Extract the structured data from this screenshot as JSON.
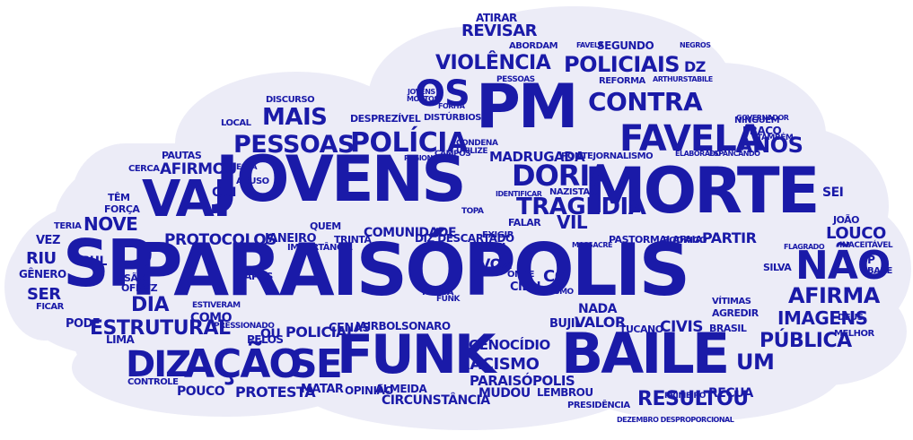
{
  "colors": {
    "background": "#ffffff",
    "cloud": "#ececf7",
    "text": "#1a1aa8",
    "text_dark": "#0d0d73",
    "text_light": "#3232c0"
  },
  "words": {
    "paraisopolis": "PARAISÓPOLIS",
    "jovens": "JOVENS",
    "morte": "MORTE",
    "pm": "PM",
    "baile": "BAILE",
    "funk": "FUNK",
    "sp": "SP",
    "vai": "VAI",
    "acao": "AÇÃO",
    "diz": "DIZ",
    "se": "SE",
    "favela": "FAVELA",
    "pessoas": "PESSOAS",
    "policia": "POLÍCIA",
    "os": "OS",
    "violencia": "VIOLÊNCIA",
    "policiais": "POLICIAIS",
    "contra": "CONTRA",
    "revisar": "REVISAR",
    "atirar": "ATIRAR",
    "mais": "MAIS",
    "afirmou": "AFIRMOU",
    "doria": "DORIA",
    "tragedia": "TRAGÉDIA",
    "madrugada": "MADRUGADA",
    "anos": "ANOS",
    "nao": "NÃO",
    "afirma": "AFIRMA",
    "imagens": "IMAGENS",
    "publica": "PÚBLICA",
    "um": "UM",
    "louco": "LOUCO",
    "estrutural": "ESTRUTURAL",
    "protocolos": "PROTOCOLOS",
    "nove": "NOVE",
    "dia": "DIA",
    "ser": "SER",
    "riu": "RIU",
    "racismo": "RACISMO",
    "genocidio": "GENOCÍDIO",
    "resultou": "RESULTOU",
    "circunstancia": "CIRCUNSTÂNCIA",
    "protesta": "PROTESTA",
    "pouco": "POUCO",
    "jairbolsonaro": "JAIRBOLSONARO",
    "policial": "POLICIAL",
    "comunidade": "COMUNIDADE",
    "janeiro": "JANEIRO",
    "partir": "PARTIR",
    "vil": "VIL",
    "civis": "CIVIS",
    "valor": "VALOR",
    "nada": "NADA",
    "bujil": "BUJIL",
    "paraisopolis2": "PARAISÓPOLIS",
    "matar": "MATAR",
    "opiniao": "OPINIÃO",
    "almeida": "ALMEIDA",
    "mudou": "MUDOU",
    "lembrou": "LEMBROU",
    "recua": "RECUA",
    "pelos": "PELOS",
    "ou": "OU",
    "cenas": "CENAS",
    "voz": "VOZ",
    "dz": "DZ",
    "reforma": "REFORMA",
    "segundo": "SEGUNDO",
    "abordam": "ABORDAM",
    "qui": "QUI",
    "como": "COMO",
    "sei": "SEI",
    "sul": "SUL",
    "quem": "QUEM",
    "lima": "LIMA",
    "pode": "PODE",
    "vez": "VEZ",
    "genero": "GÊNERO",
    "co": "CO",
    "ninguem": "NINGUÉM",
    "fraco": "FRACO",
    "sp2": "SP",
    "bare": "BARE",
    "deus": "DEUS",
    "melhor": "MELHOR",
    "silva": "SILVA",
    "vitimas": "VÍTIMAS",
    "agredir": "AGREDIR",
    "brasil": "BRASIL",
    "tucano": "TUCANO",
    "rodrigo": "RODRIGO",
    "falar": "FALAR",
    "civil": "CIVIL",
    "pastor": "PASTORMALAFAIA",
    "exigir": "EXIGIR",
    "diz2": "DIZ DESCARTADO",
    "trinta": "TRINTA",
    "importancia": "IMPORTÂNCIA",
    "pessoas2": "PESSOAS",
    "desprezivel": "DESPREZÍVEL",
    "disturbios": "DISTÚRBIOS",
    "discurso": "DISCURSO",
    "pautas": "PAUTAS",
    "abuso": "ABUSO",
    "local": "LOCAL",
    "cerca": "CERCA",
    "tem": "TÊM",
    "forca": "FORÇA",
    "teria": "TERIA",
    "ficar": "FICAR",
    "estiveram": "ESTIVERAM",
    "pressionado": "PRESSIONADO",
    "apos": "APÓS",
    "possa": "POSSA",
    "funk2": "FUNK",
    "onde": "ONDE",
    "cidh": "CIDH",
    "ofnvz": "OFNVZ",
    "sao": "SÃO",
    "controle": "CONTROLE",
    "presidencia": "PRESIDÊNCIA",
    "primeiro": "PRIMEIRO",
    "dezembro": "DEZEMBRO DESPROPORCIONAL",
    "joao": "JOÃO",
    "inaceitavel": "INACEITÁVEL",
    "flagrado": "FLAGRADO",
    "tambem": "TAMBÉM",
    "governador": "GOVERNADOR",
    "mesmo": "MESMO",
    "pontejornalismo": "PONTEJORNALISMO",
    "nazista": "NAZISTA",
    "identificar": "IDENTIFICAR",
    "topa": "TOPA",
    "condena": "CONDENA",
    "utilize": "UTILIZE",
    "campos": "CAMPOS",
    "regional": "REGIONAL",
    "esta": "ESTÁ",
    "massacre": "MASSACRE",
    "elaborado": "ELABORADO",
    "espancando": "ESPANCANDO",
    "negros": "NEGROS",
    "favela2": "FAVELA",
    "arthurstabile": "ARTHURSTABILE",
    "mortos": "MORTOS",
    "jovens2": "JOVENS",
    "pessoas3": "PESSOAS",
    "forita": "FORITA"
  }
}
